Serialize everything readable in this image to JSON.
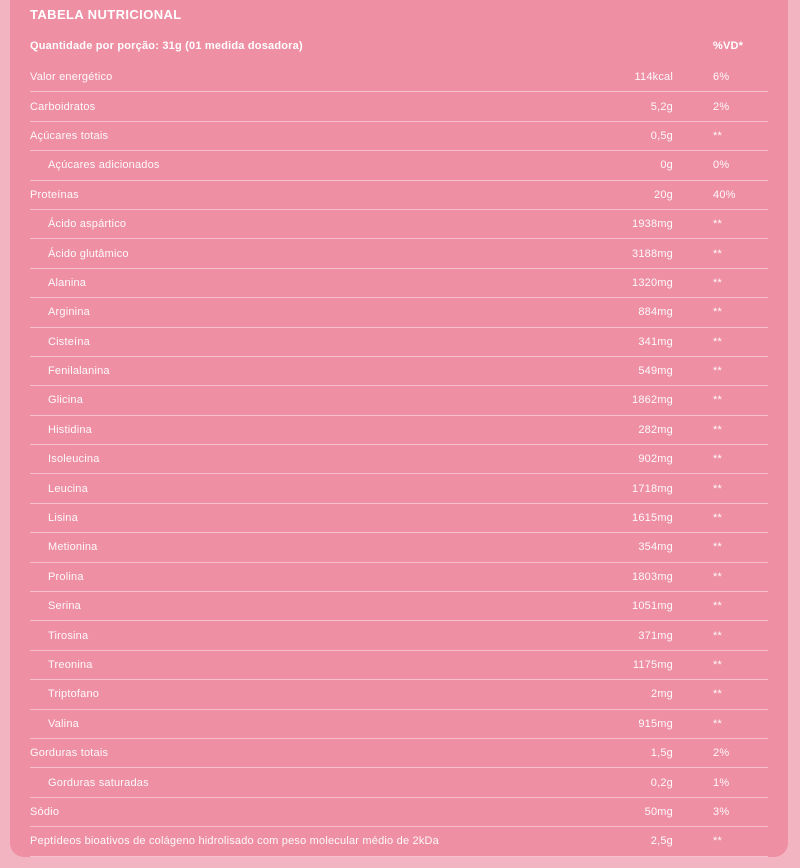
{
  "colors": {
    "page_background": "#f3b4c1",
    "card_background": "#ee8fa4",
    "text": "#ffffff",
    "divider": "rgba(255,255,255,0.45)"
  },
  "table": {
    "title": "TABELA NUTRICIONAL",
    "serving_header": "Quantidade por porção: 31g (01 medida dosadora)",
    "vd_header": "%VD*",
    "rows": [
      {
        "label": "Valor energético",
        "amount": "114kcal",
        "vd": "6%",
        "indent": false
      },
      {
        "label": "Carboidratos",
        "amount": "5,2g",
        "vd": "2%",
        "indent": false
      },
      {
        "label": "Açúcares totais",
        "amount": "0,5g",
        "vd": "**",
        "indent": false
      },
      {
        "label": "Açúcares adicionados",
        "amount": "0g",
        "vd": "0%",
        "indent": true
      },
      {
        "label": "Proteínas",
        "amount": "20g",
        "vd": "40%",
        "indent": false
      },
      {
        "label": "Ácido aspártico",
        "amount": "1938mg",
        "vd": "**",
        "indent": true
      },
      {
        "label": "Ácido glutâmico",
        "amount": "3188mg",
        "vd": "**",
        "indent": true
      },
      {
        "label": "Alanina",
        "amount": "1320mg",
        "vd": "**",
        "indent": true
      },
      {
        "label": "Arginina",
        "amount": "884mg",
        "vd": "**",
        "indent": true
      },
      {
        "label": "Cisteína",
        "amount": "341mg",
        "vd": "**",
        "indent": true
      },
      {
        "label": "Fenilalanina",
        "amount": "549mg",
        "vd": "**",
        "indent": true
      },
      {
        "label": "Glicina",
        "amount": "1862mg",
        "vd": "**",
        "indent": true
      },
      {
        "label": "Histidina",
        "amount": "282mg",
        "vd": "**",
        "indent": true
      },
      {
        "label": "Isoleucina",
        "amount": "902mg",
        "vd": "**",
        "indent": true
      },
      {
        "label": "Leucina",
        "amount": "1718mg",
        "vd": "**",
        "indent": true
      },
      {
        "label": "Lisina",
        "amount": "1615mg",
        "vd": "**",
        "indent": true
      },
      {
        "label": "Metionina",
        "amount": "354mg",
        "vd": "**",
        "indent": true
      },
      {
        "label": "Prolina",
        "amount": "1803mg",
        "vd": "**",
        "indent": true
      },
      {
        "label": "Serina",
        "amount": "1051mg",
        "vd": "**",
        "indent": true
      },
      {
        "label": "Tirosina",
        "amount": "371mg",
        "vd": "**",
        "indent": true
      },
      {
        "label": "Treonina",
        "amount": "1175mg",
        "vd": "**",
        "indent": true
      },
      {
        "label": "Triptofano",
        "amount": "2mg",
        "vd": "**",
        "indent": true
      },
      {
        "label": "Valina",
        "amount": "915mg",
        "vd": "**",
        "indent": true
      },
      {
        "label": "Gorduras totais",
        "amount": "1,5g",
        "vd": "2%",
        "indent": false
      },
      {
        "label": "Gorduras saturadas",
        "amount": "0,2g",
        "vd": "1%",
        "indent": true
      },
      {
        "label": "Sódio",
        "amount": "50mg",
        "vd": "3%",
        "indent": false
      },
      {
        "label": "Peptídeos bioativos de colágeno hidrolisado com peso molecular médio de 2kDa",
        "amount": "2,5g",
        "vd": "**",
        "indent": false
      }
    ]
  }
}
